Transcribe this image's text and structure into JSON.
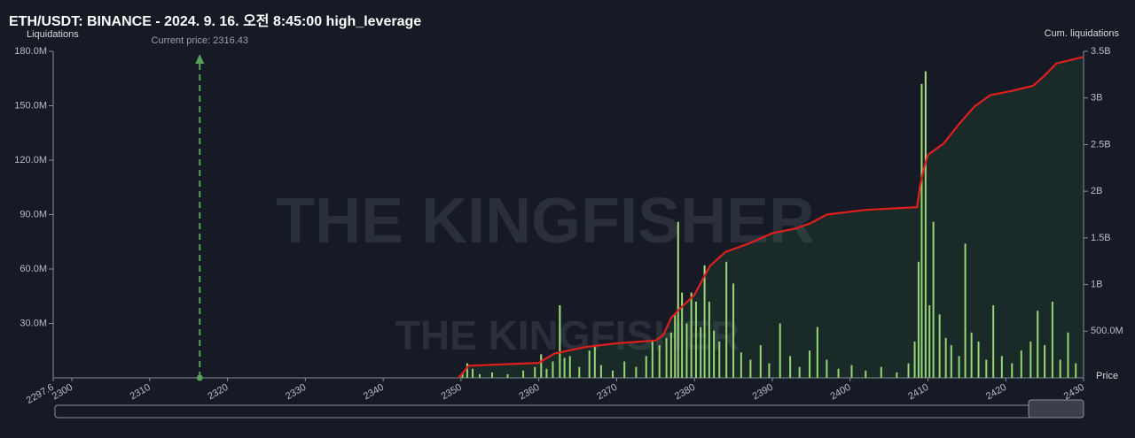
{
  "chart_data": {
    "type": "bar",
    "title": "ETH/USDT: BINANCE - 2024. 9. 16. 오전 8:45:00 high_leverage",
    "ylabel": "Liquidations",
    "y2label": "Cum. liquidations",
    "xlabel": "Price",
    "watermark": "THE KINGFISHER",
    "current_price": {
      "value": 2316.43,
      "label": "Current price: 2316.43",
      "color": "#5aa05a"
    },
    "xlim": [
      2297.6,
      2430
    ],
    "xticks": [
      2297.6,
      2300,
      2310,
      2320,
      2330,
      2340,
      2350,
      2360,
      2370,
      2380,
      2390,
      2400,
      2410,
      2420,
      2430
    ],
    "ylim": [
      0,
      180000000
    ],
    "yticks": [
      {
        "value": 30000000,
        "label": "30.0M"
      },
      {
        "value": 60000000,
        "label": "60.0M"
      },
      {
        "value": 90000000,
        "label": "90.0M"
      },
      {
        "value": 120000000,
        "label": "120.0M"
      },
      {
        "value": 150000000,
        "label": "150.0M"
      },
      {
        "value": 180000000,
        "label": "180.0M"
      }
    ],
    "y2lim": [
      0,
      3500000000
    ],
    "y2ticks": [
      {
        "value": 500000000,
        "label": "500.0M"
      },
      {
        "value": 1000000000,
        "label": "1B"
      },
      {
        "value": 1500000000,
        "label": "1.5B"
      },
      {
        "value": 2000000000,
        "label": "2B"
      },
      {
        "value": 2500000000,
        "label": "2.5B"
      },
      {
        "value": 3000000000,
        "label": "3B"
      },
      {
        "value": 3500000000,
        "label": "3.5B"
      }
    ],
    "series": [
      {
        "color": "#a6e27c",
        "x": [
          2350.2,
          2350.8,
          2351.5,
          2352.4,
          2354,
          2356,
          2358,
          2359.5,
          2360.3,
          2361,
          2361.8,
          2362.7,
          2363.3,
          2364,
          2365.2,
          2366.5,
          2367.2,
          2368,
          2369.5,
          2371,
          2372.5,
          2373.8,
          2374.6,
          2375.5,
          2376.4,
          2377,
          2377.5,
          2377.9,
          2378.4,
          2379,
          2379.6,
          2380.2,
          2380.8,
          2381.3,
          2381.9,
          2382.5,
          2383.2,
          2384.1,
          2385,
          2386,
          2387.2,
          2388.5,
          2389.6,
          2391,
          2392.3,
          2393.5,
          2394.8,
          2395.8,
          2397,
          2398.5,
          2400.2,
          2402,
          2404,
          2406,
          2407.5,
          2408.3,
          2408.8,
          2409.2,
          2409.7,
          2410.2,
          2410.7,
          2411.5,
          2412.3,
          2413,
          2414,
          2414.8,
          2415.6,
          2416.5,
          2417.5,
          2418.4,
          2419.5,
          2420.8,
          2422,
          2423.2,
          2424.1,
          2425,
          2426,
          2427,
          2428,
          2429
        ],
        "values": [
          3000000,
          8000000,
          5000000,
          2000000,
          3000000,
          2000000,
          4000000,
          6000000,
          13000000,
          5000000,
          9000000,
          40000000,
          11000000,
          12000000,
          6000000,
          15000000,
          17000000,
          7000000,
          4000000,
          9000000,
          6000000,
          12000000,
          20000000,
          18000000,
          22000000,
          25000000,
          35000000,
          86000000,
          47000000,
          30000000,
          47000000,
          42000000,
          28000000,
          62000000,
          42000000,
          26000000,
          20000000,
          64000000,
          52000000,
          14000000,
          10000000,
          18000000,
          8000000,
          30000000,
          12000000,
          6000000,
          15000000,
          28000000,
          10000000,
          5000000,
          7000000,
          4000000,
          6000000,
          3000000,
          8000000,
          20000000,
          64000000,
          162000000,
          169000000,
          40000000,
          86000000,
          35000000,
          22000000,
          18000000,
          12000000,
          74000000,
          25000000,
          20000000,
          10000000,
          40000000,
          12000000,
          8000000,
          15000000,
          20000000,
          37000000,
          18000000,
          42000000,
          10000000,
          25000000,
          8000000
        ]
      },
      {
        "type": "line",
        "axis": "y2",
        "color": "#e01e1e",
        "x": [
          2349.7,
          2351,
          2360,
          2362,
          2366,
          2370,
          2375,
          2376,
          2377,
          2378,
          2380,
          2382,
          2384,
          2387,
          2390,
          2393,
          2395,
          2397,
          2402,
          2408.6,
          2409,
          2409.5,
          2410,
          2412,
          2414,
          2416,
          2418,
          2421,
          2423.5,
          2425,
          2426.5,
          2430
        ],
        "values": [
          0,
          130000000,
          160000000,
          260000000,
          330000000,
          370000000,
          400000000,
          460000000,
          640000000,
          730000000,
          890000000,
          1200000000,
          1350000000,
          1440000000,
          1550000000,
          1600000000,
          1660000000,
          1750000000,
          1800000000,
          1830000000,
          2060000000,
          2250000000,
          2390000000,
          2510000000,
          2720000000,
          2910000000,
          3030000000,
          3080000000,
          3130000000,
          3240000000,
          3370000000,
          3440000000
        ]
      }
    ]
  }
}
